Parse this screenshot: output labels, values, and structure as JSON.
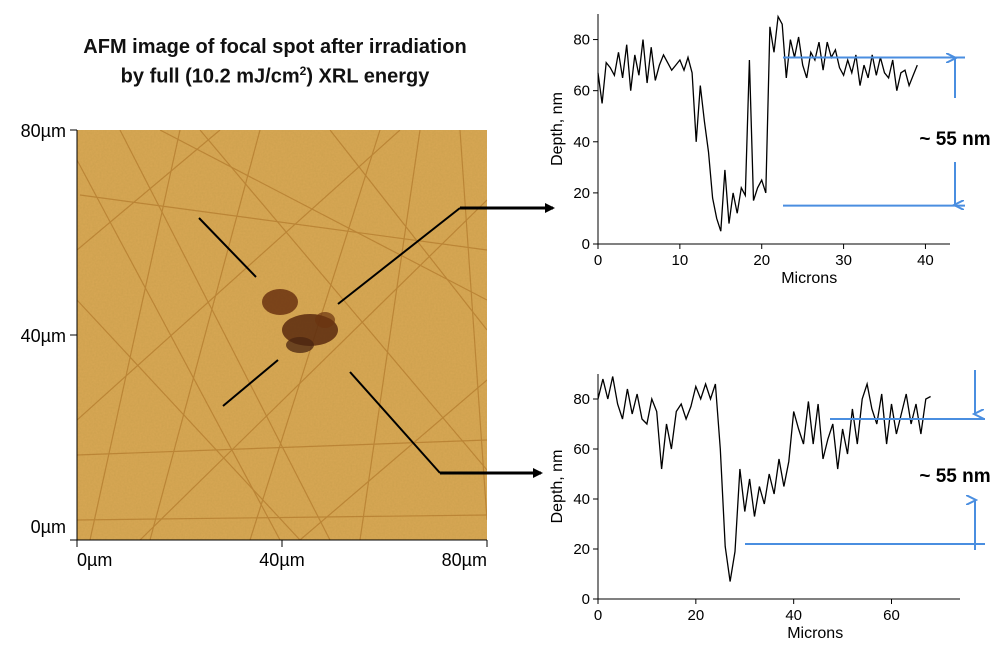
{
  "figure": {
    "title_line1": "AFM image of focal spot after irradiation",
    "title_line2_pre": "by full (10.2 mJ/cm",
    "title_line2_sup": "2",
    "title_line2_post": ") XRL energy"
  },
  "afm_image": {
    "y_ticks": [
      "80µm",
      "40µm",
      "0µm"
    ],
    "x_ticks": [
      "0µm",
      "40µm",
      "80µm"
    ],
    "colors": {
      "base": "#d9a855",
      "light": "#e8c47c",
      "scratch": "#a86c20",
      "spot": "#4a2410"
    }
  },
  "chart_data": [
    {
      "type": "line",
      "xlabel": "Microns",
      "ylabel": "Depth, nm",
      "xlim": [
        0,
        43
      ],
      "ylim": [
        0,
        90
      ],
      "xticks": [
        0,
        10,
        20,
        30,
        40
      ],
      "yticks": [
        0,
        20,
        40,
        60,
        80
      ],
      "annotation": "~ 55 nm",
      "reference_levels_nm": [
        73,
        15
      ],
      "x": [
        0,
        0.5,
        1,
        1.5,
        2,
        2.5,
        3,
        3.5,
        4,
        4.5,
        5,
        5.5,
        6,
        6.5,
        7,
        7.5,
        8,
        8.5,
        9,
        9.5,
        10,
        10.5,
        11,
        11.5,
        12,
        12.5,
        13,
        13.5,
        14,
        14.5,
        15,
        15.5,
        16,
        16.5,
        17,
        17.5,
        18,
        18.5,
        19,
        19.5,
        20,
        20.5,
        21,
        21.5,
        22,
        22.5,
        23,
        23.5,
        24,
        24.5,
        25,
        25.5,
        26,
        26.5,
        27,
        27.5,
        28,
        28.5,
        29,
        29.5,
        30,
        30.5,
        31,
        31.5,
        32,
        32.5,
        33,
        33.5,
        34,
        34.5,
        35,
        35.5,
        36,
        36.5,
        37,
        37.5,
        38,
        38.5,
        39
      ],
      "y": [
        67,
        55,
        71,
        69,
        66,
        75,
        65,
        78,
        60,
        74,
        66,
        80,
        63,
        77,
        64,
        70,
        74,
        71,
        68,
        70,
        72,
        68,
        73,
        67,
        40,
        62,
        48,
        36,
        18,
        10,
        5,
        29,
        8,
        20,
        12,
        22,
        19,
        72,
        17,
        22,
        25,
        20,
        85,
        75,
        89,
        86,
        65,
        80,
        73,
        81,
        70,
        65,
        75,
        72,
        79,
        68,
        79,
        73,
        76,
        69,
        66,
        72,
        67,
        74,
        62,
        70,
        65,
        74,
        66,
        73,
        67,
        65,
        72,
        60,
        67,
        68,
        62,
        66,
        70
      ],
      "series_color": "#000000",
      "annotation_color": "#4a8ee0"
    },
    {
      "type": "line",
      "xlabel": "Microns",
      "ylabel": "Depth, nm",
      "xlim": [
        0,
        74
      ],
      "ylim": [
        0,
        90
      ],
      "xticks": [
        0,
        20,
        40,
        60
      ],
      "yticks": [
        0,
        20,
        40,
        60,
        80
      ],
      "annotation": "~ 55 nm",
      "reference_levels_nm": [
        72,
        22
      ],
      "x": [
        0,
        1,
        2,
        3,
        4,
        5,
        6,
        7,
        8,
        9,
        10,
        11,
        12,
        13,
        14,
        15,
        16,
        17,
        18,
        19,
        20,
        21,
        22,
        23,
        24,
        25,
        26,
        27,
        28,
        29,
        30,
        31,
        32,
        33,
        34,
        35,
        36,
        37,
        38,
        39,
        40,
        41,
        42,
        43,
        44,
        45,
        46,
        47,
        48,
        49,
        50,
        51,
        52,
        53,
        54,
        55,
        56,
        57,
        58,
        59,
        60,
        61,
        62,
        63,
        64,
        65,
        66,
        67,
        68
      ],
      "y": [
        80,
        88,
        80,
        89,
        78,
        72,
        84,
        74,
        82,
        72,
        70,
        80,
        75,
        52,
        70,
        60,
        75,
        78,
        72,
        77,
        85,
        80,
        86,
        80,
        86,
        60,
        21,
        7,
        19,
        52,
        35,
        48,
        33,
        45,
        38,
        50,
        42,
        56,
        45,
        55,
        75,
        68,
        62,
        79,
        62,
        78,
        56,
        64,
        70,
        52,
        68,
        58,
        76,
        62,
        80,
        86,
        76,
        70,
        82,
        62,
        78,
        66,
        74,
        82,
        70,
        78,
        66,
        80,
        81
      ],
      "series_color": "#000000",
      "annotation_color": "#4a8ee0"
    }
  ]
}
